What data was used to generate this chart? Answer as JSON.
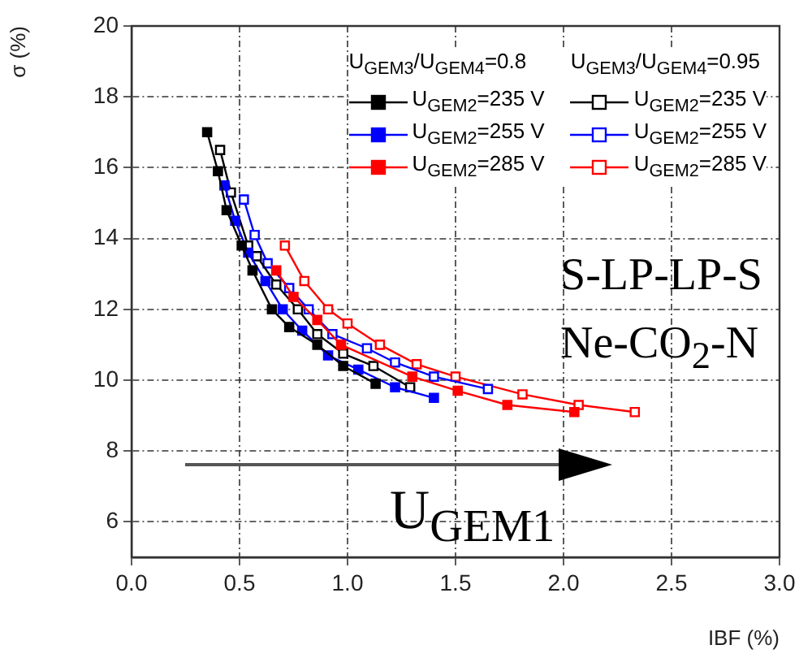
{
  "chart_data": {
    "type": "line",
    "xlabel": "IBF (%)",
    "ylabel": "σ (%)",
    "legend_title": [
      "U$_{GEM3}$/U$_{GEM4}$=0.8",
      "U$_{GEM3}$/U$_{GEM4}$=0.95"
    ],
    "xlim": [
      0,
      3
    ],
    "xticks": [
      {
        "value": 0,
        "label": "0.0"
      },
      {
        "value": 0.5,
        "label": "0.5"
      },
      {
        "value": 1,
        "label": "1.0"
      },
      {
        "value": 1.5,
        "label": "1.5"
      },
      {
        "value": 2,
        "label": "2.0"
      },
      {
        "value": 2.5,
        "label": "2.5"
      },
      {
        "value": 3,
        "label": "3.0"
      }
    ],
    "ylim": [
      5,
      20
    ],
    "yticks": [
      6,
      8,
      10,
      12,
      14,
      16,
      18,
      20
    ],
    "grid": true,
    "legend": "top right",
    "marker": "square",
    "line_style": "solid",
    "annotations": [
      "S-LP-LP-S",
      "Ne-CO$_{2}$-N",
      "U$_{GEM1}$"
    ],
    "series": [
      {
        "name": "U$_{GEM2}$=235 V",
        "color": "#000000",
        "x": [
          0.35,
          0.4,
          0.44,
          0.51,
          0.56,
          0.65,
          0.73,
          0.86,
          0.98,
          1.13
        ],
        "values": [
          17.0,
          15.9,
          14.8,
          13.8,
          13.1,
          12.0,
          11.5,
          11.0,
          10.4,
          9.9
        ]
      },
      {
        "name": "U$_{GEM2}$=255 V",
        "color": "#0000ff",
        "x": [
          0.43,
          0.48,
          0.54,
          0.62,
          0.7,
          0.79,
          0.91,
          1.05,
          1.22,
          1.4
        ],
        "values": [
          15.5,
          14.5,
          13.6,
          12.8,
          12.0,
          11.4,
          10.7,
          10.3,
          9.8,
          9.5
        ]
      },
      {
        "name": "U$_{GEM2}$=285 V",
        "color": "#ff0000",
        "x": [
          0.67,
          0.75,
          0.86,
          0.97,
          1.3,
          1.51,
          1.74,
          2.05
        ],
        "values": [
          13.1,
          12.35,
          11.7,
          11.0,
          10.1,
          9.7,
          9.3,
          9.1
        ]
      },
      {
        "name": "U$_{GEM2}$=235 V",
        "color": "#000000",
        "x": [
          0.41,
          0.46,
          0.54,
          0.58,
          0.67,
          0.77,
          0.86,
          0.98,
          1.12,
          1.29
        ],
        "values": [
          16.5,
          15.3,
          13.8,
          13.5,
          12.7,
          12.0,
          11.3,
          10.75,
          10.4,
          9.8
        ]
      },
      {
        "name": "U$_{GEM2}$=255 V",
        "color": "#0000ff",
        "x": [
          0.52,
          0.57,
          0.63,
          0.73,
          0.82,
          0.93,
          1.09,
          1.22,
          1.4,
          1.65
        ],
        "values": [
          15.1,
          14.1,
          13.3,
          12.6,
          12.0,
          11.3,
          10.9,
          10.5,
          10.1,
          9.75
        ]
      },
      {
        "name": "U$_{GEM2}$=285 V",
        "color": "#ff0000",
        "x": [
          0.71,
          0.8,
          0.91,
          1.0,
          1.15,
          1.32,
          1.5,
          1.81,
          2.07,
          2.33
        ],
        "values": [
          13.8,
          12.8,
          12.0,
          11.6,
          11.0,
          10.45,
          10.1,
          9.6,
          9.3,
          9.1
        ]
      }
    ]
  }
}
